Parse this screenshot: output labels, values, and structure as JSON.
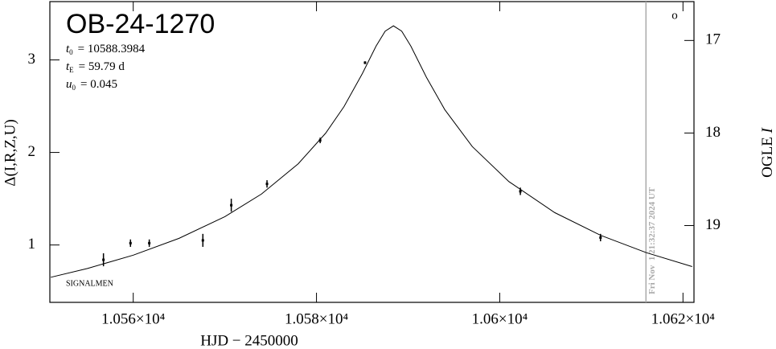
{
  "chart_data": {
    "type": "scatter",
    "title": "OB-24-1270",
    "params": [
      {
        "var": "t",
        "sub": "0",
        "text": "= 10588.3984"
      },
      {
        "var": "t",
        "sub": "E",
        "text": "= 59.79 d"
      },
      {
        "var": "u",
        "sub": "0",
        "text": "= 0.045"
      }
    ],
    "xlabel": "HJD − 2450000",
    "ylabel": "Δ(I,R,Z,U)",
    "y2label": "OGLE",
    "y2label_var": "I",
    "corner_label": "SIGNALMEN",
    "symbol": "o",
    "color": "#000000",
    "xlim": [
      10550.9,
      10621.2
    ],
    "ylim": [
      0.38,
      3.63
    ],
    "y2lim": [
      16.58,
      19.83
    ],
    "y2_inverted": true,
    "xticks": [
      {
        "value": 10560,
        "label": "1.056×10⁴"
      },
      {
        "value": 10580,
        "label": "1.058×10⁴"
      },
      {
        "value": 10600,
        "label": "1.06×10⁴"
      },
      {
        "value": 10620,
        "label": "1.062×10⁴"
      }
    ],
    "yticks": [
      1,
      2,
      3
    ],
    "y2ticks": [
      17,
      18,
      19
    ],
    "model": {
      "x": [
        10551,
        10555,
        10560,
        10565,
        10570,
        10574,
        10578,
        10581,
        10583,
        10585,
        10586.5,
        10587.5,
        10588.4,
        10589.3,
        10590.3,
        10592,
        10594,
        10597,
        10601,
        10606,
        10611,
        10616,
        10621
      ],
      "values": [
        0.651,
        0.746,
        0.89,
        1.072,
        1.306,
        1.551,
        1.877,
        2.208,
        2.495,
        2.851,
        3.149,
        3.311,
        3.368,
        3.311,
        3.149,
        2.812,
        2.463,
        2.064,
        1.685,
        1.35,
        1.105,
        0.917,
        0.767
      ]
    },
    "points": {
      "x": [
        10556.75,
        10559.7,
        10561.75,
        10567.6,
        10570.7,
        10574.6,
        10580.4,
        10585.3,
        10602.25,
        10611.0
      ],
      "values": [
        0.84,
        1.02,
        1.02,
        1.05,
        1.43,
        1.66,
        2.13,
        2.97,
        1.58,
        1.08
      ],
      "errors": [
        0.07,
        0.04,
        0.04,
        0.07,
        0.07,
        0.04,
        0.03,
        0.015,
        0.04,
        0.04
      ]
    },
    "now_line": {
      "x": 10615.96,
      "label": "Fri Nov  1 21:32:37 2024 UT",
      "color": "#aaaaaa"
    }
  }
}
